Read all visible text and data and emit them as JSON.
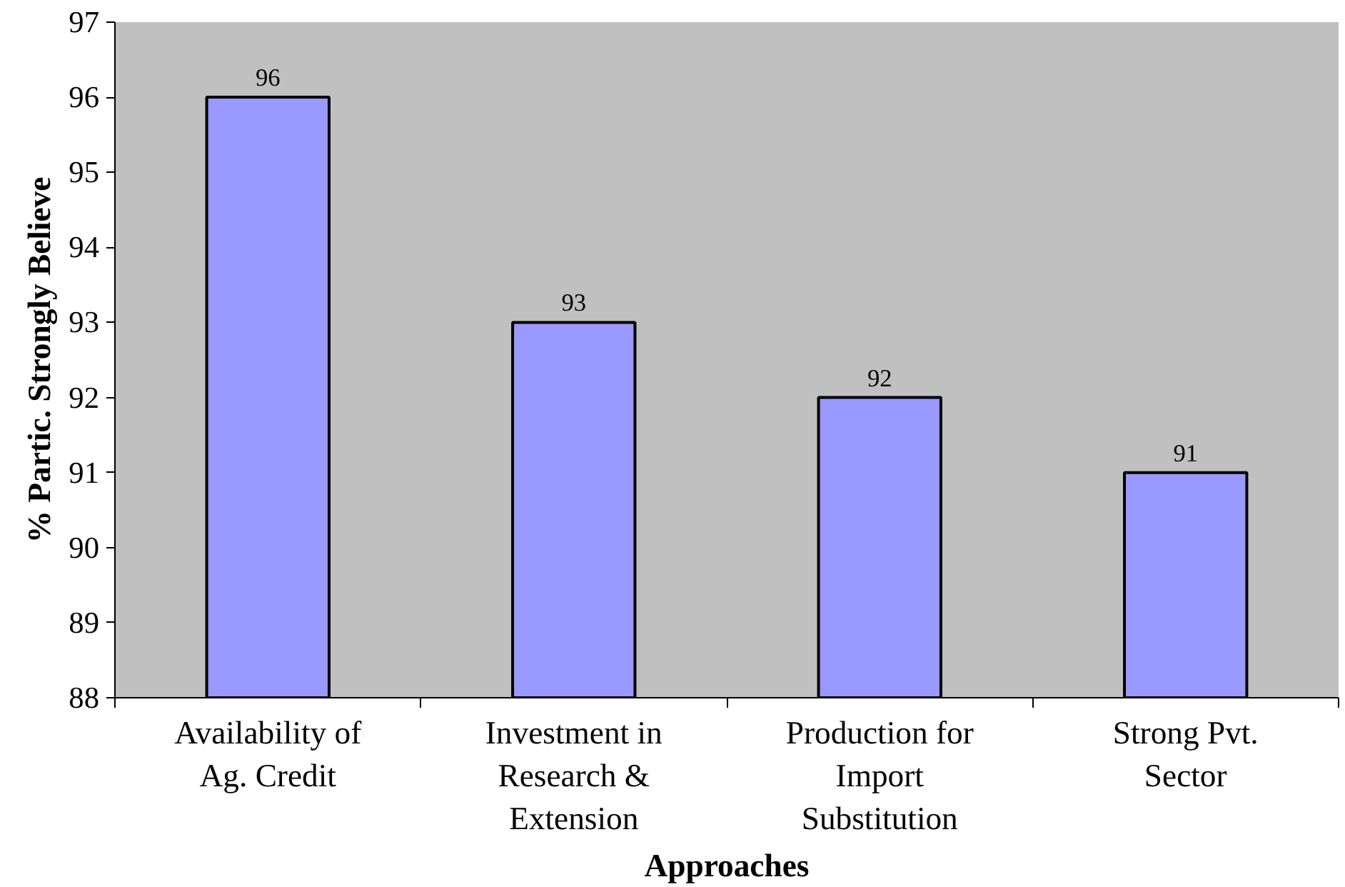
{
  "chart_data": {
    "type": "bar",
    "xlabel": "Approaches",
    "ylabel": "% Partic. Strongly Believe",
    "categories": [
      "Availability of\nAg. Credit",
      "Investment in\nResearch &\nExtension",
      "Production for\nImport\nSubstitution",
      "Strong Pvt.\nSector"
    ],
    "values": [
      96,
      93,
      92,
      91
    ],
    "color": "#9999ff",
    "ylim": [
      88,
      97
    ],
    "yticks": [
      88,
      89,
      90,
      91,
      92,
      93,
      94,
      95,
      96,
      97
    ],
    "data_labels": true,
    "grid": false
  }
}
